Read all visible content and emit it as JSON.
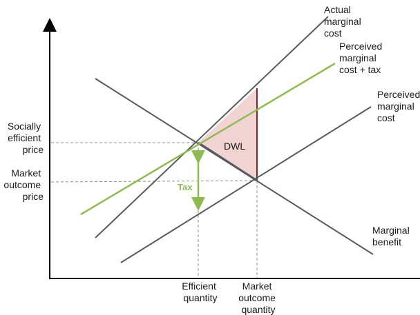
{
  "labels": {
    "actual_mc": [
      "Actual",
      "marginal",
      "cost"
    ],
    "perceived_mc_tax": [
      "Perceived",
      "marginal",
      "cost + tax"
    ],
    "perceived_mc": [
      "Perceived",
      "marginal",
      "cost"
    ],
    "marginal_benefit": [
      "Marginal",
      "benefit"
    ],
    "socially_efficient_price": [
      "Socially",
      "efficient",
      "price"
    ],
    "market_outcome_price": [
      "Market",
      "outcome",
      "price"
    ],
    "efficient_quantity": [
      "Efficient",
      "quantity"
    ],
    "market_outcome_quantity": [
      "Market",
      "outcome",
      "quantity"
    ],
    "dwl": "DWL",
    "tax": "Tax"
  },
  "colors": {
    "axis": "#000000",
    "curve": "#595959",
    "tax_line": "#8dbb4f",
    "dwl_fill": "#f2d3d3",
    "dwl_edge": "#7f2a2a",
    "guide": "#8c8c8c"
  }
}
